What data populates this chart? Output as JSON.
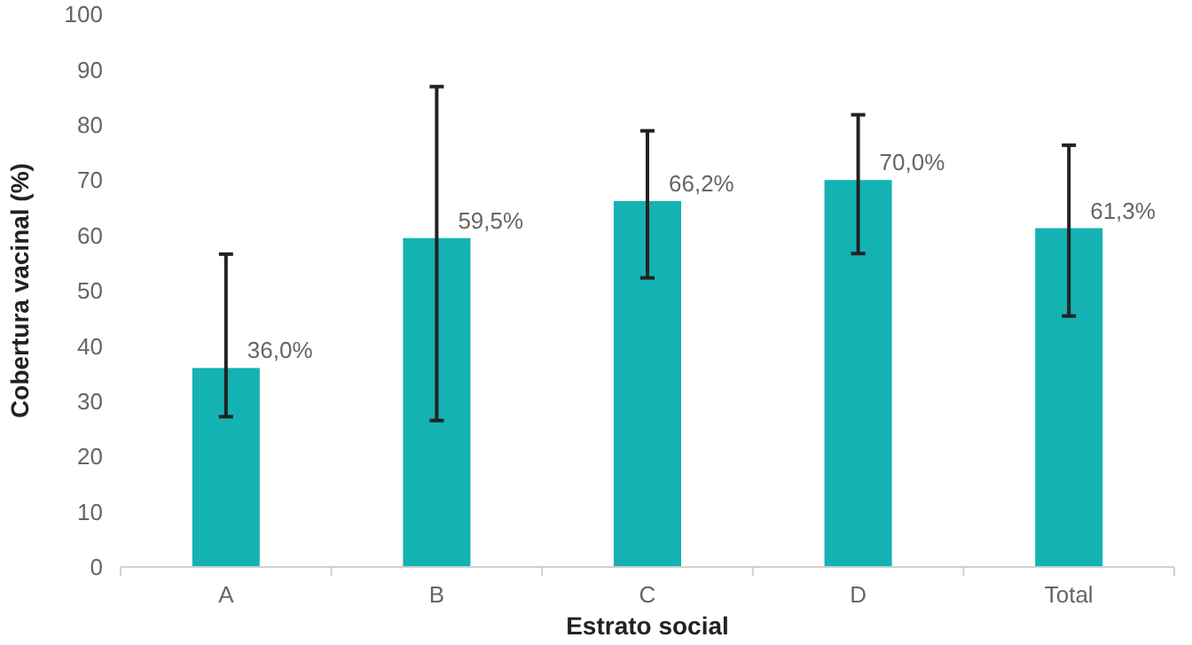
{
  "chart_data": {
    "type": "bar",
    "xlabel": "Estrato social",
    "ylabel": "Cobertura vacinal (%)",
    "categories": [
      "A",
      "B",
      "C",
      "D",
      "Total"
    ],
    "values": [
      36.0,
      59.5,
      66.2,
      70.0,
      61.3
    ],
    "value_labels": [
      "36,0%",
      "59,5%",
      "66,2%",
      "70,0%",
      "61,3%"
    ],
    "errors": [
      [
        27.2,
        56.6
      ],
      [
        26.5,
        86.9
      ],
      [
        52.3,
        78.9
      ],
      [
        56.7,
        81.8
      ],
      [
        45.4,
        76.3
      ]
    ],
    "color": "#14b2b2",
    "ylim": [
      0,
      100
    ],
    "yticks": [
      0,
      10,
      20,
      30,
      40,
      50,
      60,
      70,
      80,
      90,
      100
    ],
    "grid": false
  }
}
